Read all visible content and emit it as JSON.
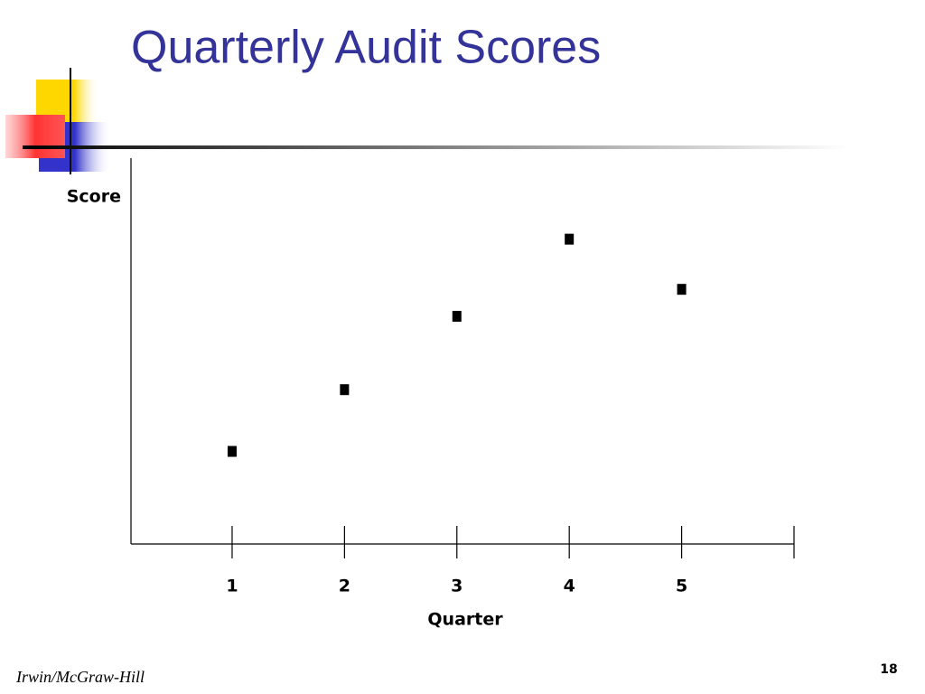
{
  "slide": {
    "title": "Quarterly Audit Scores",
    "footer": "Irwin/McGraw-Hill",
    "page_number": 18
  },
  "chart_data": {
    "type": "scatter",
    "x_label": "Quarter",
    "y_label": "Score",
    "series": [
      {
        "x": [
          1,
          2,
          3,
          4,
          5
        ],
        "values": [
          24,
          40,
          59,
          79,
          66
        ],
        "color": "#000000"
      }
    ],
    "xlim": [
      0.1,
      6
    ],
    "xticks": [
      1,
      2,
      3,
      4,
      5
    ],
    "ylim": [
      0,
      100
    ]
  }
}
